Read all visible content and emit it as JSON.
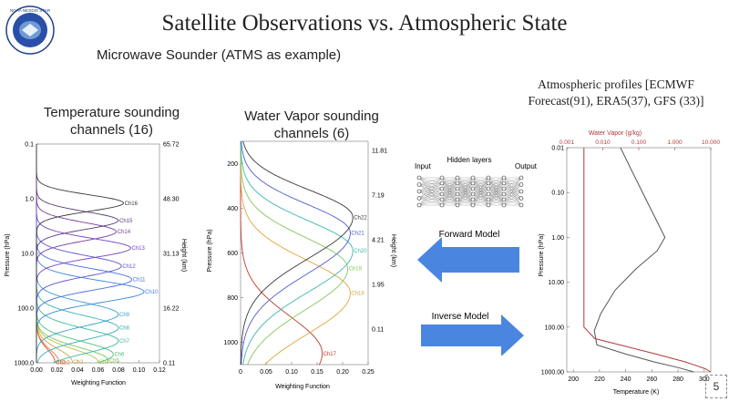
{
  "slide": {
    "title": "Satellite Observations vs. Atmospheric State",
    "subtitle": "Microwave Sounder (ATMS as example)",
    "page_number": "5",
    "logo_text": "NOAA NESDIS STAR"
  },
  "panels": {
    "temperature": {
      "title_line1": "Temperature sounding",
      "title_line2": "channels (16)",
      "ylabel": "Pressure (hPa)",
      "xlabel": "Weighting Function",
      "y2label": "Height (km)"
    },
    "water_vapor": {
      "title_line1": "Water Vapor sounding",
      "title_line2": "channels (6)",
      "ylabel": "Pressure (hPa)",
      "xlabel": "Weighting Function",
      "y2label": "Height (km)"
    },
    "network": {
      "input_label": "Input",
      "hidden_label": "Hidden layers",
      "output_label": "Output",
      "forward_label": "Forward Model",
      "inverse_label": "Inverse Model"
    },
    "profiles": {
      "title_line1": "Atmospheric profiles [ECMWF",
      "title_line2": "Forecast(91), ERA5(37), GFS (33)]",
      "ylabel": "Pressure (hPa)",
      "xlabel": "Temperature (K)",
      "top_label": "Water Vapor (g/kg)"
    }
  },
  "chart_data": [
    {
      "type": "line",
      "id": "temperature_wf",
      "x_ticks": [
        "0.00",
        "0.02",
        "0.04",
        "0.06",
        "0.08",
        "0.10",
        "0.12"
      ],
      "xlim": [
        0,
        0.12
      ],
      "y_ticks": [
        "0.1",
        "1.0",
        "10.0",
        "100.0",
        "1000.0"
      ],
      "ylim": [
        0.1,
        1000
      ],
      "y2_ticks": [
        "65.72",
        "48.30",
        "31.13",
        "16.22",
        "0.11"
      ],
      "series": [
        {
          "name": "Ch1",
          "peak_hPa": 980,
          "peak_value": 0.018,
          "color": "#d24b37"
        },
        {
          "name": "Ch2",
          "peak_hPa": 985,
          "peak_value": 0.022,
          "color": "#e07d3c"
        },
        {
          "name": "Ch3",
          "peak_hPa": 960,
          "peak_value": 0.035,
          "color": "#cfa640"
        },
        {
          "name": "Ch4",
          "peak_hPa": 960,
          "peak_value": 0.06,
          "color": "#b6c546"
        },
        {
          "name": "Ch5",
          "peak_hPa": 900,
          "peak_value": 0.07,
          "color": "#7bc65a"
        },
        {
          "name": "Ch6",
          "peak_hPa": 700,
          "peak_value": 0.075,
          "color": "#4ec07a"
        },
        {
          "name": "Ch7",
          "peak_hPa": 400,
          "peak_value": 0.08,
          "color": "#3db99a"
        },
        {
          "name": "Ch8",
          "peak_hPa": 230,
          "peak_value": 0.08,
          "color": "#38b0b9"
        },
        {
          "name": "Ch9",
          "peak_hPa": 130,
          "peak_value": 0.08,
          "color": "#3a9fd0"
        },
        {
          "name": "Ch10",
          "peak_hPa": 50,
          "peak_value": 0.105,
          "color": "#3d86de"
        },
        {
          "name": "Ch11",
          "peak_hPa": 30,
          "peak_value": 0.093,
          "color": "#4a6ce0"
        },
        {
          "name": "Ch12",
          "peak_hPa": 17,
          "peak_value": 0.083,
          "color": "#5b55d8"
        },
        {
          "name": "Ch13",
          "peak_hPa": 8,
          "peak_value": 0.092,
          "color": "#7244c8"
        },
        {
          "name": "Ch14",
          "peak_hPa": 4,
          "peak_value": 0.078,
          "color": "#7a3d9c"
        },
        {
          "name": "Ch15",
          "peak_hPa": 2.5,
          "peak_value": 0.08,
          "color": "#5b3a78"
        },
        {
          "name": "Ch16",
          "peak_hPa": 1.2,
          "peak_value": 0.085,
          "color": "#3b3b3b"
        }
      ]
    },
    {
      "type": "line",
      "id": "water_vapor_wf",
      "x_ticks": [
        "0",
        "0.05",
        "0.10",
        "0.15",
        "0.20",
        "0.25"
      ],
      "xlim": [
        0,
        0.25
      ],
      "y_ticks": [
        "200",
        "400",
        "600",
        "800",
        "1000"
      ],
      "ylim": [
        100,
        1100
      ],
      "y2_ticks": [
        "11.81",
        "7.19",
        "4.21",
        "1.95",
        "0.11"
      ],
      "series": [
        {
          "name": "Ch17",
          "peak_hPa": 1050,
          "peak_value": 0.16,
          "color": "#c0392b"
        },
        {
          "name": "Ch18",
          "peak_hPa": 780,
          "peak_value": 0.215,
          "color": "#e0a43c"
        },
        {
          "name": "Ch19",
          "peak_hPa": 670,
          "peak_value": 0.21,
          "color": "#7fc85a"
        },
        {
          "name": "Ch20",
          "peak_hPa": 590,
          "peak_value": 0.22,
          "color": "#3ab9a9"
        },
        {
          "name": "Ch21",
          "peak_hPa": 510,
          "peak_value": 0.215,
          "color": "#4f5bd8"
        },
        {
          "name": "Ch22",
          "peak_hPa": 440,
          "peak_value": 0.22,
          "color": "#3a3a3a"
        }
      ]
    },
    {
      "type": "line",
      "id": "atmospheric_profile",
      "x_ticks": [
        "200",
        "220",
        "240",
        "260",
        "280",
        "300"
      ],
      "xlim": [
        195,
        305
      ],
      "y_ticks": [
        "0.01",
        "0.10",
        "1.00",
        "10.00",
        "100.00",
        "1000.00"
      ],
      "ylim": [
        0.01,
        1000
      ],
      "top_ticks": [
        "0.001",
        "0.010",
        "0.100",
        "1.000",
        "10.000"
      ],
      "series": [
        {
          "name": "Temperature",
          "color": "#555555",
          "points": [
            [
              236,
              0.01
            ],
            [
              244,
              0.03
            ],
            [
              258,
              0.2
            ],
            [
              270,
              1.0
            ],
            [
              264,
              2.0
            ],
            [
              248,
              5.0
            ],
            [
              232,
              15.0
            ],
            [
              221,
              50.0
            ],
            [
              216,
              120.0
            ],
            [
              218,
              250.0
            ],
            [
              240,
              400.0
            ],
            [
              262,
              600.0
            ],
            [
              280,
              800.0
            ],
            [
              292,
              1000.0
            ]
          ]
        },
        {
          "name": "Water Vapor",
          "color": "#b03a3a",
          "points": [
            [
              0.003,
              0.01
            ],
            [
              0.003,
              0.1
            ],
            [
              0.003,
              1.0
            ],
            [
              0.003,
              10.0
            ],
            [
              0.003,
              100.0
            ],
            [
              0.006,
              180.0
            ],
            [
              0.03,
              250.0
            ],
            [
              0.3,
              400.0
            ],
            [
              2.0,
              600.0
            ],
            [
              7.0,
              850.0
            ],
            [
              10.0,
              1000.0
            ]
          ]
        }
      ]
    }
  ]
}
